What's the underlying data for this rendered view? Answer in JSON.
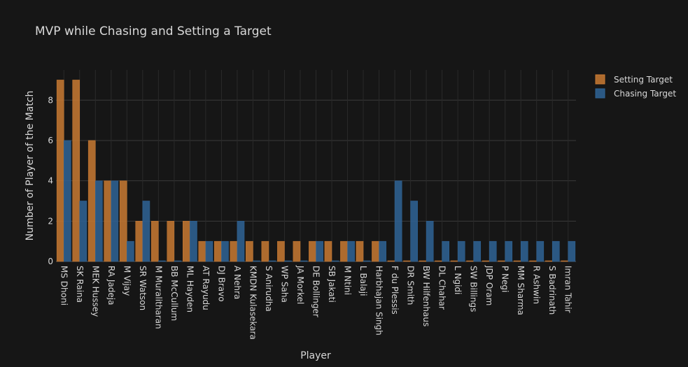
{
  "chart_data": {
    "type": "bar",
    "title": "MVP while Chasing and Setting a Target",
    "xlabel": "Player",
    "ylabel": "Number of Player of the Match",
    "ylim": [
      0,
      9.5
    ],
    "yticks": [
      0,
      2,
      4,
      6,
      8
    ],
    "grid": true,
    "legend_position": "top-right",
    "categories": [
      "MS Dhoni",
      "SK Raina",
      "MEK Hussey",
      "RA Jadeja",
      "M Vijay",
      "SR Watson",
      "M Muralitharan",
      "BB McCullum",
      "ML Hayden",
      "AT Rayudu",
      "DJ Bravo",
      "A Nehra",
      "KMDN Kulasekara",
      "S Anirudha",
      "WP Saha",
      "JA Morkel",
      "DE Bollinger",
      "SB Jakati",
      "M Ntini",
      "L Balaji",
      "Harbhajan Singh",
      "F du Plessis",
      "DR Smith",
      "BW Hilfenhaus",
      "DL Chahar",
      "L Ngidi",
      "SW Billings",
      "JDP Oram",
      "P Negi",
      "MM Sharma",
      "R Ashwin",
      "S Badrinath",
      "Imran Tahir"
    ],
    "series": [
      {
        "name": "Setting Target",
        "color": "#c97a32",
        "values": [
          9,
          9,
          6,
          4,
          4,
          2,
          2,
          2,
          2,
          1,
          1,
          1,
          1,
          1,
          1,
          1,
          1,
          1,
          1,
          1,
          1,
          0,
          0,
          0,
          0,
          0,
          0,
          0,
          0,
          0,
          0,
          0,
          0
        ]
      },
      {
        "name": "Chasing Target",
        "color": "#2f6496",
        "values": [
          6,
          3,
          4,
          4,
          1,
          3,
          0,
          0,
          2,
          1,
          1,
          2,
          0,
          0,
          0,
          0,
          1,
          0,
          1,
          0,
          1,
          4,
          3,
          2,
          1,
          1,
          1,
          1,
          1,
          1,
          1,
          1,
          1
        ]
      }
    ]
  },
  "colors": {
    "background": "#161616",
    "grid": "#3a3a3a",
    "text": "#d8d8d8"
  }
}
